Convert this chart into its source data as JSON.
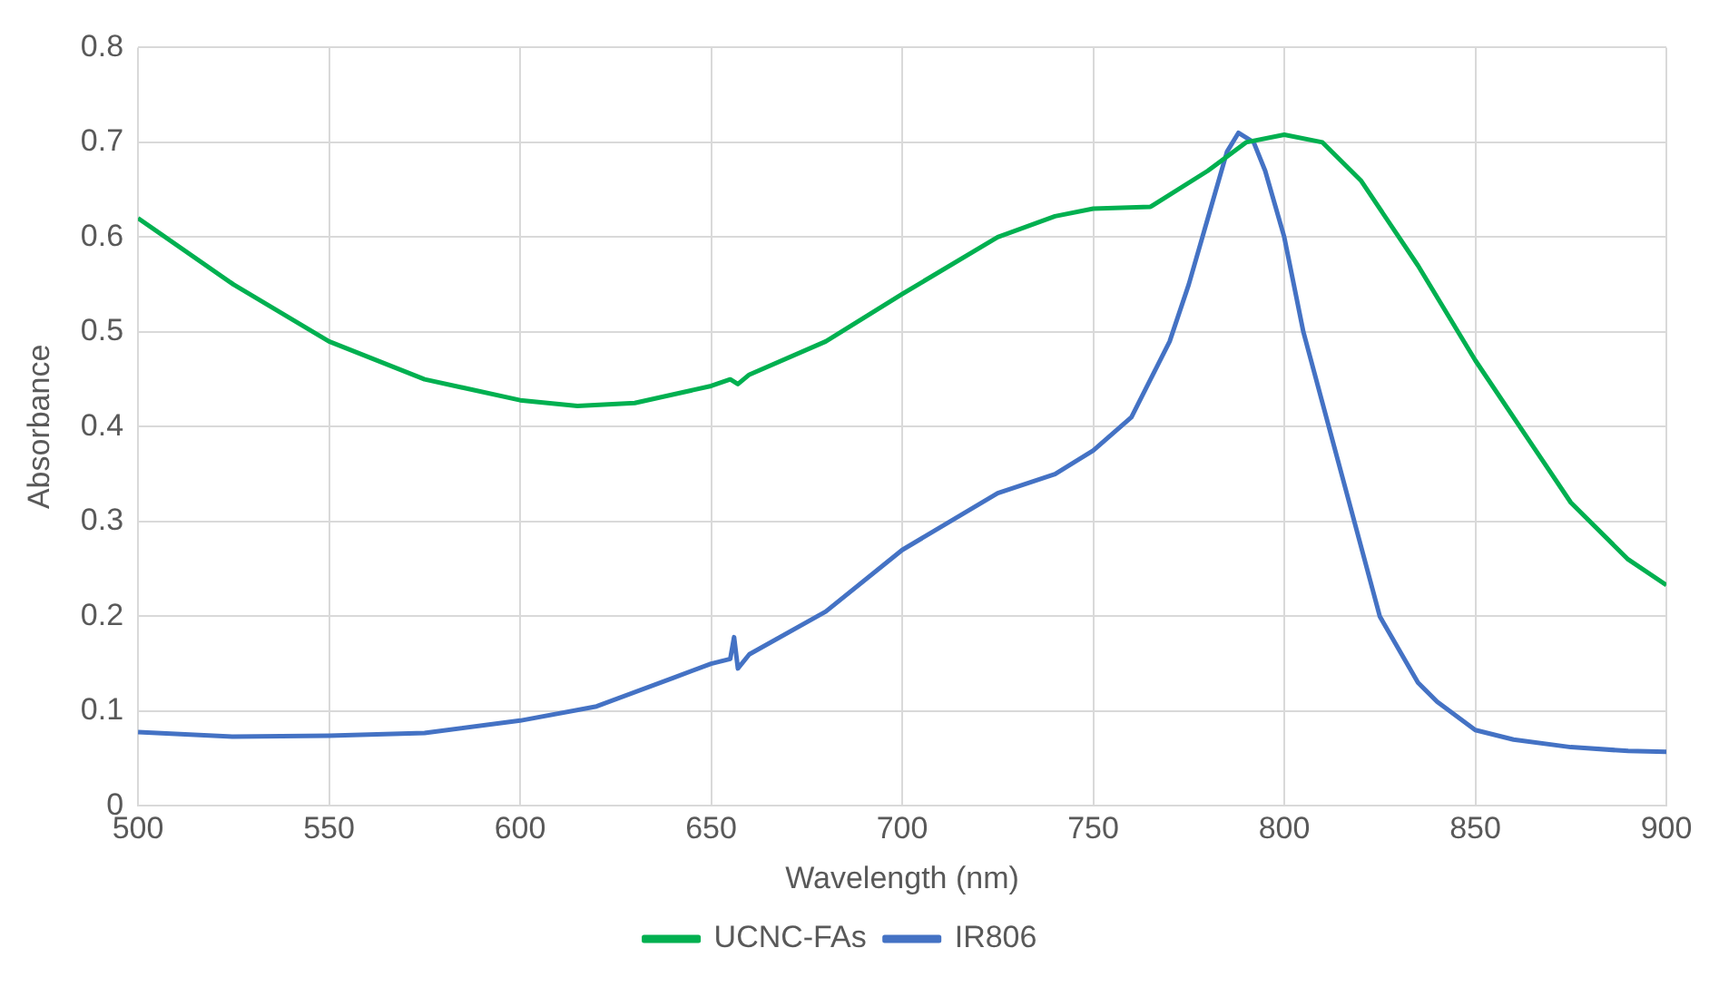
{
  "chart_data": {
    "type": "line",
    "xlabel": "Wavelength (nm)",
    "ylabel": "Absorbance",
    "xlim": [
      500,
      900
    ],
    "xticks": [
      500,
      550,
      600,
      650,
      700,
      750,
      800,
      850,
      900
    ],
    "ylim": [
      0,
      0.8
    ],
    "yticks": [
      0,
      0.1,
      0.2,
      0.3,
      0.4,
      0.5,
      0.6,
      0.7,
      0.8
    ],
    "grid": true,
    "legend": "bottom",
    "marker": "none",
    "line_style": "solid",
    "series": [
      {
        "name": "UCNC-FAs",
        "color": "#00b050",
        "x": [
          500,
          525,
          550,
          575,
          600,
          615,
          630,
          650,
          655,
          657,
          660,
          680,
          700,
          725,
          740,
          750,
          765,
          780,
          790,
          800,
          810,
          820,
          835,
          850,
          865,
          875,
          890,
          900
        ],
        "values": [
          0.62,
          0.55,
          0.49,
          0.45,
          0.428,
          0.422,
          0.425,
          0.443,
          0.45,
          0.445,
          0.455,
          0.49,
          0.54,
          0.6,
          0.622,
          0.63,
          0.632,
          0.67,
          0.7,
          0.708,
          0.7,
          0.66,
          0.57,
          0.47,
          0.38,
          0.32,
          0.26,
          0.233
        ]
      },
      {
        "name": "IR806",
        "color": "#4472c4",
        "x": [
          500,
          525,
          550,
          575,
          600,
          620,
          640,
          650,
          655,
          656,
          657,
          660,
          680,
          700,
          725,
          740,
          750,
          760,
          770,
          775,
          780,
          785,
          788,
          792,
          795,
          800,
          805,
          815,
          825,
          835,
          840,
          850,
          860,
          875,
          890,
          900
        ],
        "values": [
          0.078,
          0.073,
          0.074,
          0.077,
          0.09,
          0.105,
          0.135,
          0.15,
          0.155,
          0.178,
          0.145,
          0.16,
          0.205,
          0.27,
          0.33,
          0.35,
          0.375,
          0.41,
          0.49,
          0.55,
          0.62,
          0.69,
          0.71,
          0.7,
          0.67,
          0.6,
          0.5,
          0.35,
          0.2,
          0.13,
          0.11,
          0.08,
          0.07,
          0.062,
          0.058,
          0.057
        ]
      }
    ]
  }
}
